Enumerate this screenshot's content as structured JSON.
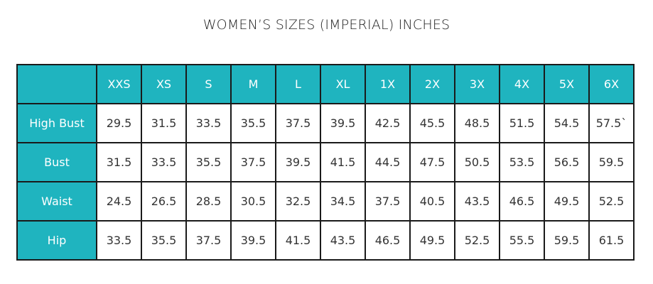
{
  "title": "WOMEN’S SIZES (IMPERIAL) INCHES",
  "table": {
    "columns": [
      "XXS",
      "XS",
      "S",
      "M",
      "L",
      "XL",
      "1X",
      "2X",
      "3X",
      "4X",
      "5X",
      "6X"
    ],
    "rows": [
      {
        "label": "High Bust",
        "values": [
          "29.5",
          "31.5",
          "33.5",
          "35.5",
          "37.5",
          "39.5",
          "42.5",
          "45.5",
          "48.5",
          "51.5",
          "54.5",
          "57.5`"
        ]
      },
      {
        "label": "Bust",
        "values": [
          "31.5",
          "33.5",
          "35.5",
          "37.5",
          "39.5",
          "41.5",
          "44.5",
          "47.5",
          "50.5",
          "53.5",
          "56.5",
          "59.5"
        ]
      },
      {
        "label": "Waist",
        "values": [
          "24.5",
          "26.5",
          "28.5",
          "30.5",
          "32.5",
          "34.5",
          "37.5",
          "40.5",
          "43.5",
          "46.5",
          "49.5",
          "52.5"
        ]
      },
      {
        "label": "Hip",
        "values": [
          "33.5",
          "35.5",
          "37.5",
          "39.5",
          "41.5",
          "43.5",
          "46.5",
          "49.5",
          "52.5",
          "55.5",
          "59.5",
          "61.5"
        ]
      }
    ]
  }
}
